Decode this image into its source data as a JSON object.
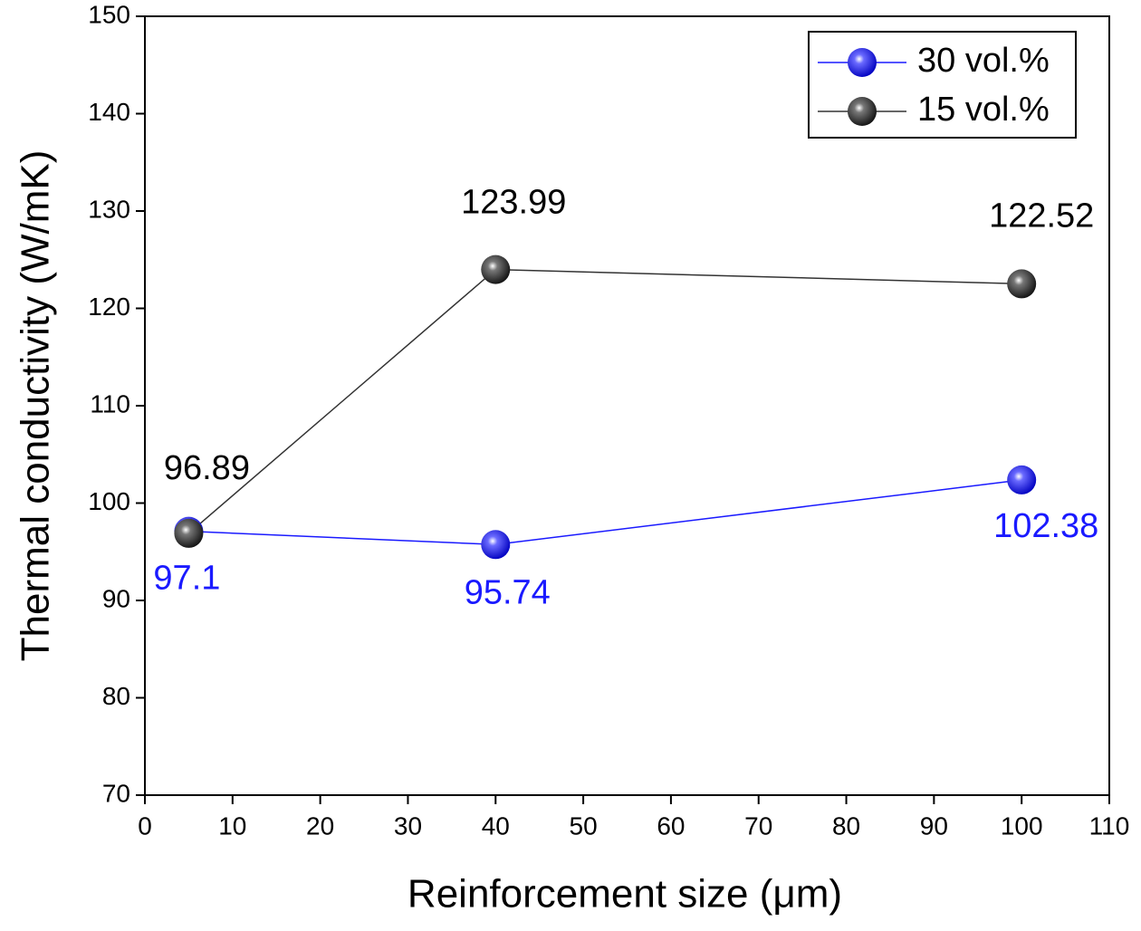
{
  "chart_data": {
    "type": "line",
    "x_label": "Reinforcement size (μm)",
    "y_label": "Thermal conductivity (W/mK)",
    "x": [
      5,
      40,
      100
    ],
    "series": [
      {
        "name": "30 vol.%",
        "color": "#1a1aff",
        "values": [
          97.1,
          95.74,
          102.38
        ]
      },
      {
        "name": "15 vol.%",
        "color": "#333333",
        "values": [
          96.89,
          123.99,
          122.52
        ]
      }
    ],
    "xlim": [
      0,
      110
    ],
    "xticks": [
      0,
      10,
      20,
      30,
      40,
      50,
      60,
      70,
      80,
      90,
      100,
      110
    ],
    "ylim": [
      70,
      150
    ],
    "yticks": [
      70,
      80,
      90,
      100,
      110,
      120,
      130,
      140,
      150
    ],
    "legend": "upper right",
    "grid": false
  }
}
